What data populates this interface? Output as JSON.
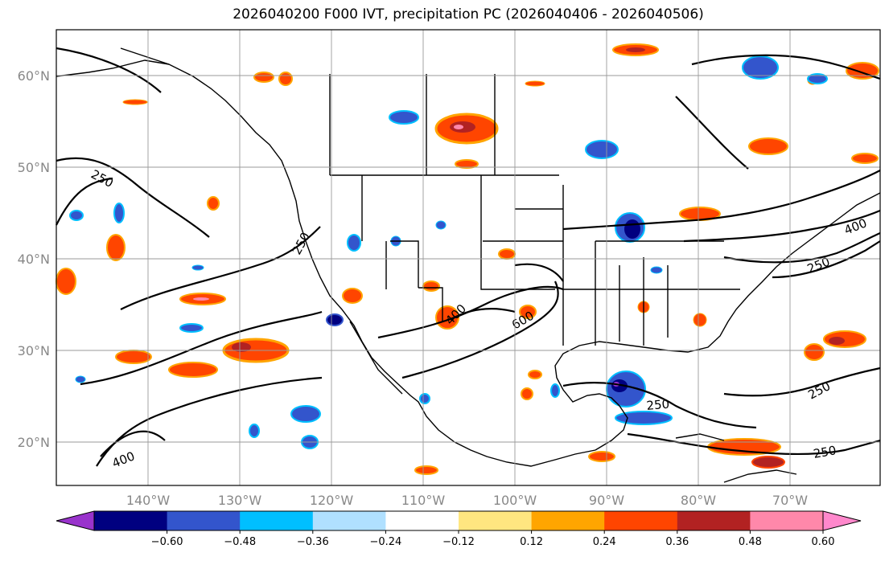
{
  "title": "2026040200 F000 IVT, precipitation PC (2026040406 - 2026040506)",
  "map": {
    "lat_labels": [
      "60°N",
      "50°N",
      "40°N",
      "30°N",
      "20°N"
    ],
    "lon_labels": [
      "140°W",
      "130°W",
      "120°W",
      "110°W",
      "100°W",
      "90°W",
      "80°W",
      "70°W"
    ],
    "contour_labels": [
      {
        "text": "250",
        "id": "ivt-250-pacific-nw"
      },
      {
        "text": "250",
        "id": "ivt-250-california"
      },
      {
        "text": "400",
        "id": "ivt-400-southwest"
      },
      {
        "text": "600",
        "id": "ivt-600-texas"
      },
      {
        "text": "400",
        "id": "ivt-400-northeast"
      },
      {
        "text": "250",
        "id": "ivt-250-mid-atlantic"
      },
      {
        "text": "250",
        "id": "ivt-250-gulf"
      },
      {
        "text": "250",
        "id": "ivt-250-atlantic"
      },
      {
        "text": "250",
        "id": "ivt-250-caribbean"
      },
      {
        "text": "400",
        "id": "ivt-400-pacific-south"
      }
    ]
  },
  "colorbar": {
    "ticks": [
      "−0.60",
      "−0.48",
      "−0.36",
      "−0.24",
      "−0.12",
      "0.12",
      "0.24",
      "0.36",
      "0.48",
      "0.60"
    ],
    "colors": {
      "under": "#9933cc",
      "bins": [
        "#000080",
        "#3355cc",
        "#00bfff",
        "#b0e0ff",
        "#ffffff",
        "#ffe680",
        "#ffa500",
        "#ff4500",
        "#b22222",
        "#ff88aa"
      ],
      "over": "#ff88cc"
    }
  }
}
